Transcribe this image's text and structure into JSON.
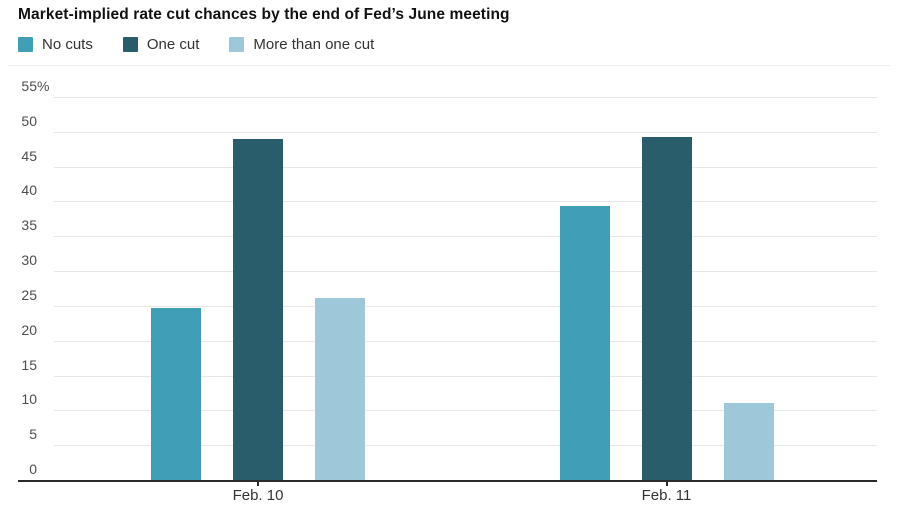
{
  "title": "Market-implied rate cut chances by the end of Fed’s June meeting",
  "chart_data": {
    "type": "bar",
    "title": "Market-implied rate cut chances by the end of Fed’s June meeting",
    "categories": [
      "Feb. 10",
      "Feb. 11"
    ],
    "series": [
      {
        "name": "No cuts",
        "color": "#3f9fb6",
        "values": [
          24.7,
          39.4
        ]
      },
      {
        "name": "One cut",
        "color": "#295d6b",
        "values": [
          49.0,
          49.3
        ]
      },
      {
        "name": "More than one cut",
        "color": "#9dc8da",
        "values": [
          26.1,
          11.0
        ]
      }
    ],
    "xlabel": "",
    "ylabel": "",
    "ylim": [
      0,
      55
    ],
    "y_ticks": [
      55,
      50,
      45,
      40,
      35,
      30,
      25,
      20,
      15,
      10,
      5,
      0
    ],
    "y_tick_top_suffix": "%",
    "grid": true,
    "legend_position": "top-left"
  },
  "colors": {
    "grid": "#e7e7e7",
    "baseline": "#2b2b2b",
    "title_text": "#111111",
    "legend_text": "#333333",
    "y_tick_text": "#4d4d4d",
    "x_tick_text": "#333333",
    "background": "#ffffff"
  }
}
